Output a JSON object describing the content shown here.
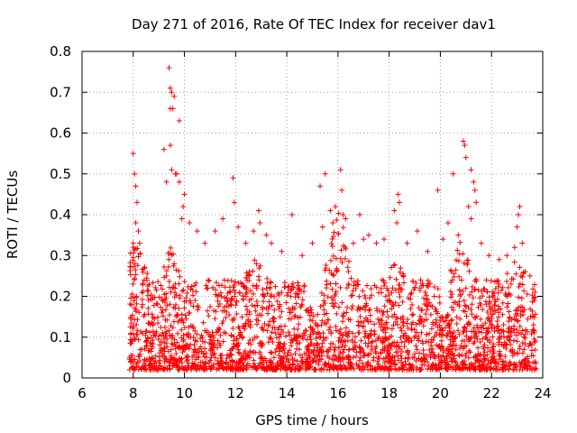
{
  "chart_data": {
    "type": "scatter",
    "title": "Day 271 of 2016, Rate Of TEC Index for receiver dav1",
    "xlabel": "GPS time / hours",
    "ylabel": "ROTI / TECUs",
    "xlim": [
      6,
      24
    ],
    "ylim": [
      0,
      0.8
    ],
    "xticks": [
      6,
      8,
      10,
      12,
      14,
      16,
      18,
      20,
      22,
      24
    ],
    "yticks": [
      0,
      0.1,
      0.2,
      0.3,
      0.4,
      0.5,
      0.6,
      0.7,
      0.8
    ],
    "grid": true,
    "marker": "+",
    "color": "#ff0000",
    "series": [
      {
        "name": "ROTI",
        "points": [
          [
            8.0,
            0.55
          ],
          [
            8.05,
            0.5
          ],
          [
            8.1,
            0.47
          ],
          [
            8.15,
            0.43
          ],
          [
            8.1,
            0.38
          ],
          [
            8.0,
            0.33
          ],
          [
            8.2,
            0.36
          ],
          [
            8.25,
            0.33
          ],
          [
            9.2,
            0.56
          ],
          [
            9.3,
            0.48
          ],
          [
            9.4,
            0.76
          ],
          [
            9.45,
            0.71
          ],
          [
            9.5,
            0.7
          ],
          [
            9.45,
            0.66
          ],
          [
            9.6,
            0.69
          ],
          [
            9.55,
            0.66
          ],
          [
            9.8,
            0.63
          ],
          [
            9.45,
            0.57
          ],
          [
            9.5,
            0.51
          ],
          [
            9.65,
            0.5
          ],
          [
            9.7,
            0.5
          ],
          [
            9.8,
            0.48
          ],
          [
            10.0,
            0.45
          ],
          [
            9.95,
            0.42
          ],
          [
            9.9,
            0.39
          ],
          [
            10.2,
            0.38
          ],
          [
            10.5,
            0.36
          ],
          [
            10.8,
            0.33
          ],
          [
            11.2,
            0.36
          ],
          [
            11.5,
            0.39
          ],
          [
            11.9,
            0.49
          ],
          [
            11.95,
            0.43
          ],
          [
            12.1,
            0.37
          ],
          [
            12.4,
            0.33
          ],
          [
            12.7,
            0.36
          ],
          [
            12.9,
            0.41
          ],
          [
            12.95,
            0.38
          ],
          [
            13.2,
            0.35
          ],
          [
            13.4,
            0.33
          ],
          [
            13.8,
            0.31
          ],
          [
            14.2,
            0.4
          ],
          [
            14.6,
            0.3
          ],
          [
            15.0,
            0.33
          ],
          [
            15.3,
            0.47
          ],
          [
            15.4,
            0.37
          ],
          [
            15.5,
            0.5
          ],
          [
            15.7,
            0.41
          ],
          [
            15.8,
            0.38
          ],
          [
            15.9,
            0.42
          ],
          [
            16.1,
            0.51
          ],
          [
            16.15,
            0.46
          ],
          [
            16.2,
            0.4
          ],
          [
            16.3,
            0.39
          ],
          [
            16.6,
            0.33
          ],
          [
            16.85,
            0.4
          ],
          [
            17.0,
            0.34
          ],
          [
            17.2,
            0.35
          ],
          [
            17.5,
            0.33
          ],
          [
            17.8,
            0.34
          ],
          [
            18.2,
            0.41
          ],
          [
            18.35,
            0.45
          ],
          [
            18.4,
            0.43
          ],
          [
            18.3,
            0.38
          ],
          [
            18.7,
            0.33
          ],
          [
            19.1,
            0.36
          ],
          [
            19.5,
            0.31
          ],
          [
            19.9,
            0.46
          ],
          [
            20.1,
            0.34
          ],
          [
            20.3,
            0.38
          ],
          [
            20.5,
            0.5
          ],
          [
            20.7,
            0.35
          ],
          [
            20.9,
            0.58
          ],
          [
            20.95,
            0.57
          ],
          [
            21.0,
            0.54
          ],
          [
            21.2,
            0.51
          ],
          [
            21.3,
            0.48
          ],
          [
            21.35,
            0.46
          ],
          [
            21.4,
            0.43
          ],
          [
            21.1,
            0.42
          ],
          [
            21.2,
            0.39
          ],
          [
            21.6,
            0.33
          ],
          [
            21.9,
            0.3
          ],
          [
            22.3,
            0.29
          ],
          [
            22.6,
            0.3
          ],
          [
            22.9,
            0.32
          ],
          [
            23.0,
            0.37
          ],
          [
            23.05,
            0.4
          ],
          [
            23.1,
            0.42
          ],
          [
            23.2,
            0.33
          ],
          [
            23.5,
            0.25
          ],
          [
            23.7,
            0.21
          ]
        ]
      }
    ],
    "note": "dense cloud of + markers between GPS time ~7.8 h and ~23.8 h concentrated in 0.0-0.25 ROTI; generated procedurally from listed peak outliers"
  }
}
